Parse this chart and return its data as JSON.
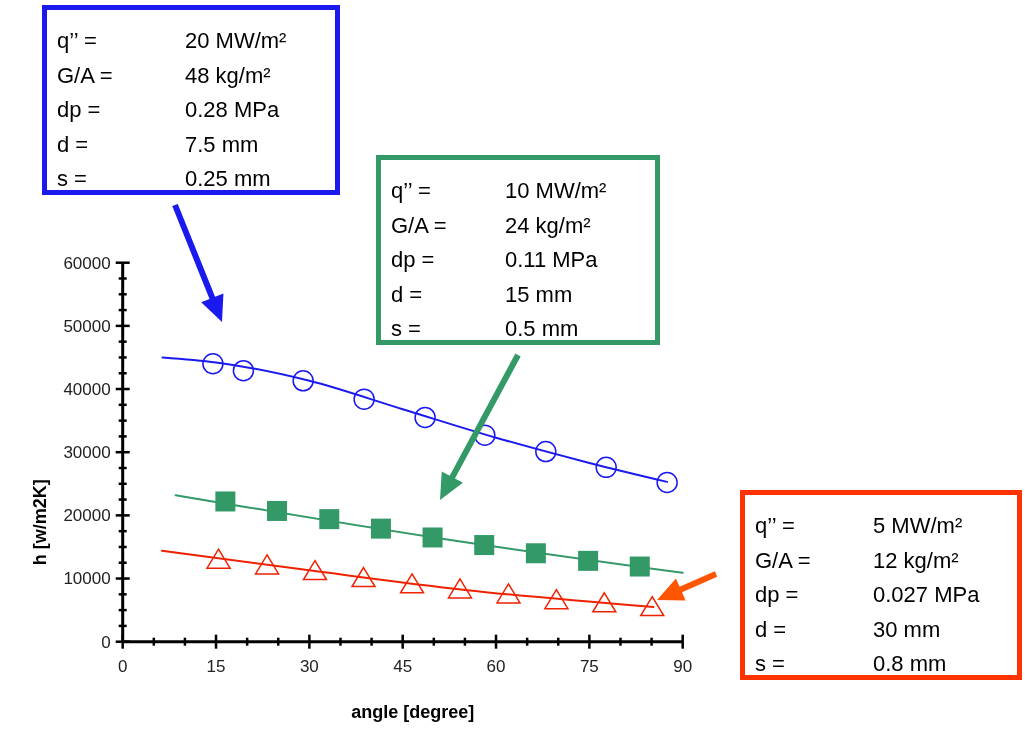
{
  "chart_data": {
    "type": "scatter",
    "xlabel": "angle [degree]",
    "ylabel": "h [w/m2K]",
    "xlim": [
      0,
      90
    ],
    "ylim": [
      0,
      60000
    ],
    "xticks": [
      0,
      {
        "value": 5,
        "label": null
      },
      {
        "value": 10,
        "label": null
      },
      15,
      {
        "value": 20,
        "label": null
      },
      {
        "value": 25,
        "label": null
      },
      30,
      {
        "value": 35,
        "label": null
      },
      {
        "value": 40,
        "label": null
      },
      45,
      {
        "value": 50,
        "label": null
      },
      {
        "value": 55,
        "label": null
      },
      60,
      {
        "value": 65,
        "label": null
      },
      {
        "value": 70,
        "label": null
      },
      75,
      {
        "value": 80,
        "label": null
      },
      {
        "value": 85,
        "label": null
      },
      90
    ],
    "yticks": [
      0,
      {
        "value": 2500,
        "label": null
      },
      {
        "value": 5000,
        "label": null
      },
      {
        "value": 7500,
        "label": null
      },
      10000,
      {
        "value": 12500,
        "label": null
      },
      {
        "value": 15000,
        "label": null
      },
      {
        "value": 17500,
        "label": null
      },
      20000,
      {
        "value": 22500,
        "label": null
      },
      {
        "value": 25000,
        "label": null
      },
      {
        "value": 27500,
        "label": null
      },
      30000,
      {
        "value": 32500,
        "label": null
      },
      {
        "value": 35000,
        "label": null
      },
      {
        "value": 37500,
        "label": null
      },
      40000,
      {
        "value": 42500,
        "label": null
      },
      {
        "value": 45000,
        "label": null
      },
      {
        "value": 47500,
        "label": null
      },
      50000,
      {
        "value": 52500,
        "label": null
      },
      {
        "value": 55000,
        "label": null
      },
      {
        "value": 57500,
        "label": null
      },
      60000
    ],
    "grid": false,
    "series": [
      {
        "color": "#1a1aee",
        "marker": "circle",
        "x": [
          14.5,
          19.4,
          29.0,
          38.8,
          48.6,
          58.2,
          68.0,
          77.7,
          87.5
        ],
        "values": [
          44000,
          42900,
          41300,
          38400,
          35500,
          32700,
          30100,
          27600,
          25200
        ]
      },
      {
        "color": "#339966",
        "marker": "square",
        "x": [
          16.5,
          24.8,
          33.2,
          41.5,
          49.8,
          58.1,
          66.4,
          74.8,
          83.1
        ],
        "values": [
          22200,
          20700,
          19400,
          17900,
          16500,
          15300,
          14000,
          12800,
          11900
        ]
      },
      {
        "color": "#ee2200",
        "marker": "triangle",
        "x": [
          15.4,
          23.2,
          30.9,
          38.7,
          46.5,
          54.2,
          62.0,
          69.7,
          77.4,
          85.1
        ],
        "values": [
          12900,
          12000,
          11100,
          10000,
          9000,
          8200,
          7400,
          6500,
          6000,
          5400
        ]
      },
      {
        "type": "line",
        "color": "#1a1aee",
        "marker": "none",
        "line_style": "solid",
        "x": [
          6.4,
          15,
          30,
          45,
          60,
          75,
          87.5
        ],
        "values": [
          45000,
          44200,
          41300,
          36800,
          32300,
          28300,
          25300
        ]
      },
      {
        "type": "line",
        "color": "#339966",
        "marker": "none",
        "line_style": "solid",
        "x": [
          8.5,
          50,
          90
        ],
        "values": [
          23200,
          16500,
          10900
        ]
      },
      {
        "type": "line",
        "color": "#ee2200",
        "marker": "none",
        "line_style": "solid",
        "x": [
          6.3,
          30,
          55,
          85.3
        ],
        "values": [
          14400,
          11300,
          8200,
          5500
        ]
      }
    ],
    "annotations": [
      "q’’ = 20 MW/m²\nG/A = 48 kg/m²\ndp = 0.28 MPa\nd = 7.5 mm\ns = 0.25 mm",
      "q’’ = 10 MW/m²\nG/A = 24 kg/m²\ndp = 0.11 MPa\nd = 15 mm\ns = 0.5 mm",
      "q’’ = 5 MW/m²\nG/A = 12 kg/m²\ndp = 0.027 MPa\nd = 30 mm\ns = 0.8 mm"
    ]
  }
}
